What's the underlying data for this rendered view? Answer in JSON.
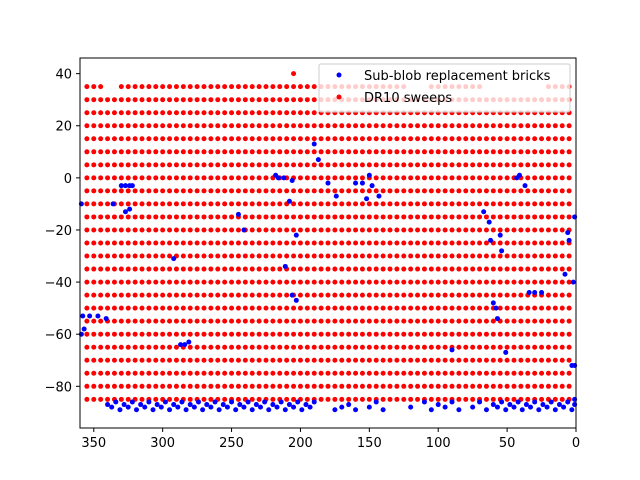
{
  "chart_data": {
    "type": "scatter",
    "title": "",
    "xlabel": "",
    "ylabel": "",
    "xlim": [
      360,
      0
    ],
    "ylim": [
      -96,
      46
    ],
    "x_ticks": [
      350,
      300,
      250,
      200,
      150,
      100,
      50,
      0
    ],
    "y_ticks": [
      40,
      20,
      0,
      -20,
      -40,
      -60,
      -80
    ],
    "grid": false,
    "legend_position": "upper-right",
    "series": [
      {
        "name": "Sub-blob replacement bricks",
        "color": "#0000ff",
        "points": [
          [
            340,
            -87
          ],
          [
            337,
            -88
          ],
          [
            334,
            -86
          ],
          [
            331,
            -89
          ],
          [
            328,
            -87
          ],
          [
            325,
            -88
          ],
          [
            322,
            -86
          ],
          [
            319,
            -89
          ],
          [
            316,
            -87
          ],
          [
            313,
            -88
          ],
          [
            310,
            -86
          ],
          [
            307,
            -89
          ],
          [
            304,
            -87
          ],
          [
            301,
            -88
          ],
          [
            298,
            -86
          ],
          [
            295,
            -89
          ],
          [
            292,
            -87
          ],
          [
            289,
            -88
          ],
          [
            286,
            -86
          ],
          [
            283,
            -89
          ],
          [
            280,
            -87
          ],
          [
            277,
            -88
          ],
          [
            274,
            -86
          ],
          [
            271,
            -89
          ],
          [
            268,
            -87
          ],
          [
            265,
            -88
          ],
          [
            262,
            -86
          ],
          [
            259,
            -89
          ],
          [
            256,
            -87
          ],
          [
            253,
            -88
          ],
          [
            250,
            -86
          ],
          [
            247,
            -89
          ],
          [
            244,
            -87
          ],
          [
            241,
            -88
          ],
          [
            238,
            -86
          ],
          [
            235,
            -89
          ],
          [
            232,
            -87
          ],
          [
            229,
            -88
          ],
          [
            226,
            -86
          ],
          [
            223,
            -89
          ],
          [
            220,
            -87
          ],
          [
            217,
            -88
          ],
          [
            214,
            -86
          ],
          [
            211,
            -89
          ],
          [
            208,
            -87
          ],
          [
            205,
            -88
          ],
          [
            202,
            -86
          ],
          [
            199,
            -89
          ],
          [
            196,
            -87
          ],
          [
            193,
            -88
          ],
          [
            190,
            -86
          ],
          [
            175,
            -89
          ],
          [
            170,
            -88
          ],
          [
            165,
            -87
          ],
          [
            160,
            -89
          ],
          [
            150,
            -88
          ],
          [
            145,
            -86
          ],
          [
            140,
            -89
          ],
          [
            120,
            -88
          ],
          [
            110,
            -86
          ],
          [
            105,
            -89
          ],
          [
            100,
            -87
          ],
          [
            95,
            -88
          ],
          [
            90,
            -86
          ],
          [
            85,
            -89
          ],
          [
            75,
            -88
          ],
          [
            70,
            -86
          ],
          [
            65,
            -89
          ],
          [
            60,
            -87
          ],
          [
            57,
            -88
          ],
          [
            54,
            -86
          ],
          [
            51,
            -89
          ],
          [
            48,
            -87
          ],
          [
            45,
            -88
          ],
          [
            42,
            -86
          ],
          [
            39,
            -89
          ],
          [
            36,
            -87
          ],
          [
            33,
            -88
          ],
          [
            30,
            -86
          ],
          [
            27,
            -89
          ],
          [
            24,
            -87
          ],
          [
            21,
            -88
          ],
          [
            18,
            -86
          ],
          [
            15,
            -89
          ],
          [
            12,
            -87
          ],
          [
            9,
            -88
          ],
          [
            6,
            -86
          ],
          [
            3,
            -89
          ],
          [
            1,
            -87
          ],
          [
            1,
            -85
          ],
          [
            359,
            -10
          ],
          [
            358,
            -53
          ],
          [
            353,
            -53
          ],
          [
            347,
            -53
          ],
          [
            341,
            -54
          ],
          [
            359,
            -60
          ],
          [
            357,
            -58
          ],
          [
            330,
            -3
          ],
          [
            327,
            -3
          ],
          [
            324,
            -3
          ],
          [
            322,
            -3
          ],
          [
            336,
            -10
          ],
          [
            327,
            -13
          ],
          [
            324,
            -12
          ],
          [
            292,
            -31
          ],
          [
            287,
            -64
          ],
          [
            284,
            -64
          ],
          [
            281,
            -63
          ],
          [
            245,
            -14
          ],
          [
            241,
            -20
          ],
          [
            218,
            1
          ],
          [
            216,
            0
          ],
          [
            212,
            0
          ],
          [
            208,
            -9
          ],
          [
            206,
            -1
          ],
          [
            203,
            -22
          ],
          [
            211,
            -34
          ],
          [
            206,
            -45
          ],
          [
            203,
            -47
          ],
          [
            190,
            13
          ],
          [
            187,
            7
          ],
          [
            180,
            -2
          ],
          [
            174,
            -7
          ],
          [
            160,
            -2
          ],
          [
            155,
            -2
          ],
          [
            152,
            -8
          ],
          [
            150,
            1
          ],
          [
            148,
            -3
          ],
          [
            143,
            -7
          ],
          [
            90,
            -66
          ],
          [
            67,
            -13
          ],
          [
            63,
            -17
          ],
          [
            62,
            -24
          ],
          [
            60,
            -48
          ],
          [
            58,
            -50
          ],
          [
            55,
            -22
          ],
          [
            54,
            -28
          ],
          [
            57,
            -54
          ],
          [
            51,
            -67
          ],
          [
            43,
            0
          ],
          [
            41,
            1
          ],
          [
            37,
            -3
          ],
          [
            34,
            -44
          ],
          [
            30,
            -44
          ],
          [
            25,
            -44
          ],
          [
            8,
            -37
          ],
          [
            6,
            -21
          ],
          [
            5,
            -24
          ],
          [
            2,
            -40
          ],
          [
            1,
            -15
          ],
          [
            3,
            -72
          ],
          [
            1,
            -72
          ]
        ]
      },
      {
        "name": "DR10 sweeps",
        "color": "#ff0000",
        "grid_points": [
          {
            "lat": 40,
            "lon_from": 205,
            "lon_to": 205,
            "lon_step": 1
          },
          {
            "lat": 35,
            "lon_from": 5,
            "lon_to": 355,
            "lon_step": 5,
            "lon_exclude_ranges": [
              [
                25,
                65
              ],
              [
                110,
                120
              ],
              [
                335,
                340
              ]
            ]
          },
          {
            "lat": 30,
            "lon_from": 5,
            "lon_to": 355,
            "lon_step": 5
          },
          {
            "lat": 25,
            "lon_from": 5,
            "lon_to": 355,
            "lon_step": 5
          },
          {
            "lat": 20,
            "lon_from": 5,
            "lon_to": 355,
            "lon_step": 5
          },
          {
            "lat": 15,
            "lon_from": 5,
            "lon_to": 355,
            "lon_step": 5
          },
          {
            "lat": 10,
            "lon_from": 5,
            "lon_to": 355,
            "lon_step": 5
          },
          {
            "lat": 5,
            "lon_from": 5,
            "lon_to": 355,
            "lon_step": 5
          },
          {
            "lat": 0,
            "lon_from": 5,
            "lon_to": 355,
            "lon_step": 5
          },
          {
            "lat": -5,
            "lon_from": 5,
            "lon_to": 355,
            "lon_step": 5
          },
          {
            "lat": -10,
            "lon_from": 5,
            "lon_to": 355,
            "lon_step": 5
          },
          {
            "lat": -15,
            "lon_from": 5,
            "lon_to": 355,
            "lon_step": 5
          },
          {
            "lat": -20,
            "lon_from": 5,
            "lon_to": 355,
            "lon_step": 5
          },
          {
            "lat": -25,
            "lon_from": 5,
            "lon_to": 355,
            "lon_step": 5
          },
          {
            "lat": -30,
            "lon_from": 5,
            "lon_to": 355,
            "lon_step": 5
          },
          {
            "lat": -35,
            "lon_from": 5,
            "lon_to": 355,
            "lon_step": 5
          },
          {
            "lat": -40,
            "lon_from": 5,
            "lon_to": 355,
            "lon_step": 5
          },
          {
            "lat": -45,
            "lon_from": 5,
            "lon_to": 355,
            "lon_step": 5
          },
          {
            "lat": -50,
            "lon_from": 5,
            "lon_to": 355,
            "lon_step": 5
          },
          {
            "lat": -55,
            "lon_from": 5,
            "lon_to": 355,
            "lon_step": 5
          },
          {
            "lat": -60,
            "lon_from": 5,
            "lon_to": 355,
            "lon_step": 5
          },
          {
            "lat": -65,
            "lon_from": 5,
            "lon_to": 355,
            "lon_step": 5
          },
          {
            "lat": -70,
            "lon_from": 5,
            "lon_to": 355,
            "lon_step": 5
          },
          {
            "lat": -75,
            "lon_from": 5,
            "lon_to": 355,
            "lon_step": 5
          },
          {
            "lat": -80,
            "lon_from": 5,
            "lon_to": 355,
            "lon_step": 5
          },
          {
            "lat": -85,
            "lon_from": 5,
            "lon_to": 355,
            "lon_step": 5
          }
        ]
      }
    ]
  }
}
